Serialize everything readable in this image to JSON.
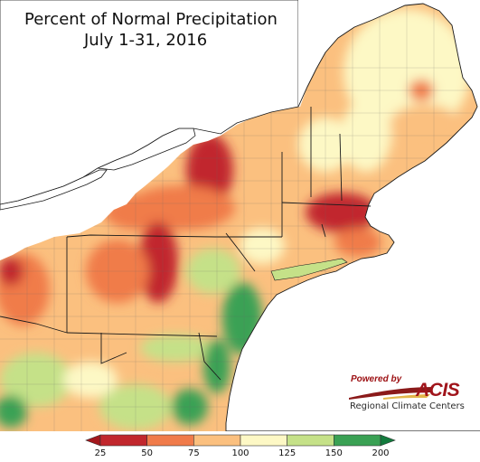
{
  "title": {
    "line1": "Percent of Normal Precipitation",
    "line2": "July 1-31, 2016"
  },
  "credit": {
    "powered_by": "Powered by",
    "acis": "ACIS",
    "regional_climate_centers": "Regional Climate Centers"
  },
  "legend": {
    "ticks": [
      "25",
      "50",
      "75",
      "100",
      "125",
      "150",
      "200"
    ],
    "bins": [
      {
        "color": "#c1272d",
        "label": "25-50"
      },
      {
        "color": "#f07b4a",
        "label": "50-75"
      },
      {
        "color": "#fbc07f",
        "label": "75-100"
      },
      {
        "color": "#fdf8c5",
        "label": "100-125"
      },
      {
        "color": "#c5e188",
        "label": "125-150"
      },
      {
        "color": "#3aa154",
        "label": "150-200"
      }
    ],
    "under_color": "#a4171c",
    "over_color": "#137b3d"
  },
  "colors": {
    "lakes": "#ffffff",
    "ocean": "#ffffff",
    "boundary": "#1a1a1a"
  }
}
